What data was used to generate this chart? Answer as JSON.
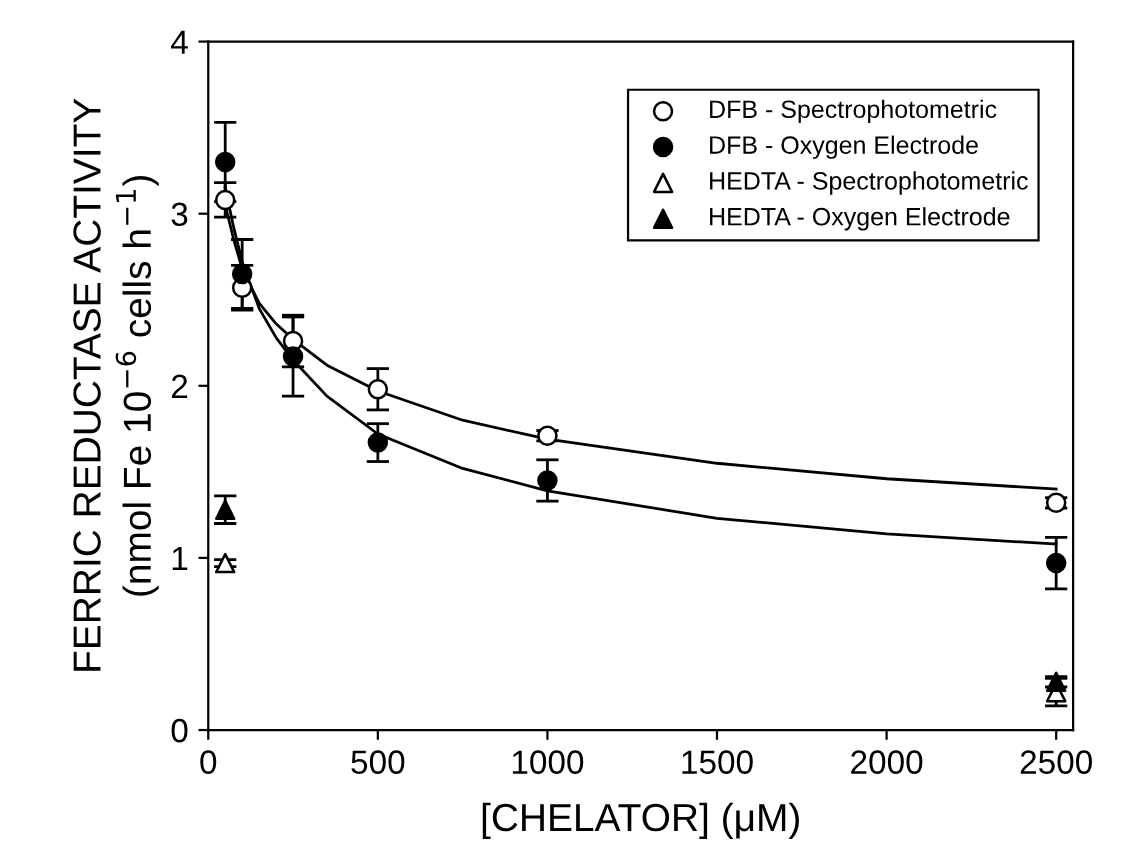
{
  "chart_data": {
    "type": "scatter",
    "xlabel": "[CHELATOR] (μM)",
    "ylabel": "FERRIC REDUCTASE ACTIVITY\n(nmol Fe 10$^{−6}$ cells h$^{−1}$)",
    "xlim": [
      0,
      2550
    ],
    "ylim": [
      0,
      4
    ],
    "xticks": [
      0,
      500,
      1000,
      1500,
      2000,
      2500
    ],
    "yticks": [
      0,
      1,
      2,
      3,
      4
    ],
    "grid": false,
    "legend": "top right",
    "series": [
      {
        "name": "DFB - Spectrophotometric",
        "color": "#ffffff",
        "marker": "circle",
        "x": [
          50,
          100,
          250,
          500,
          1000,
          2500
        ],
        "values": [
          3.08,
          2.57,
          2.26,
          1.98,
          1.71,
          1.32
        ],
        "errors": [
          0.1,
          0.13,
          0.15,
          0.12,
          0.03,
          0.03
        ]
      },
      {
        "name": "DFB - Oxygen Electrode",
        "color": "#000000",
        "marker": "circle",
        "x": [
          50,
          100,
          250,
          500,
          1000,
          2500
        ],
        "values": [
          3.3,
          2.65,
          2.17,
          1.67,
          1.45,
          0.97
        ],
        "errors": [
          0.23,
          0.2,
          0.23,
          0.11,
          0.12,
          0.15
        ]
      },
      {
        "name": "HEDTA - Spectrophotometric",
        "color": "#ffffff",
        "marker": "triangle",
        "x": [
          50,
          2500
        ],
        "values": [
          0.97,
          0.22
        ],
        "errors": [
          0.02,
          0.08
        ]
      },
      {
        "name": "HEDTA - Oxygen Electrode",
        "color": "#000000",
        "marker": "triangle",
        "x": [
          50,
          2500
        ],
        "values": [
          1.28,
          0.28
        ],
        "errors": [
          0.08,
          0.03
        ]
      },
      {
        "type": "line",
        "color": "#000000",
        "x": [
          50,
          75,
          100,
          150,
          200,
          250,
          350,
          500,
          750,
          1000,
          1500,
          2000,
          2500
        ],
        "values": [
          3.05,
          2.85,
          2.68,
          2.48,
          2.36,
          2.27,
          2.12,
          1.97,
          1.8,
          1.69,
          1.55,
          1.46,
          1.4
        ]
      },
      {
        "type": "line",
        "color": "#000000",
        "x": [
          50,
          75,
          100,
          150,
          200,
          250,
          350,
          500,
          750,
          1000,
          1500,
          2000,
          2500
        ],
        "values": [
          3.15,
          2.92,
          2.72,
          2.45,
          2.28,
          2.15,
          1.94,
          1.72,
          1.52,
          1.39,
          1.23,
          1.14,
          1.08
        ]
      }
    ]
  }
}
